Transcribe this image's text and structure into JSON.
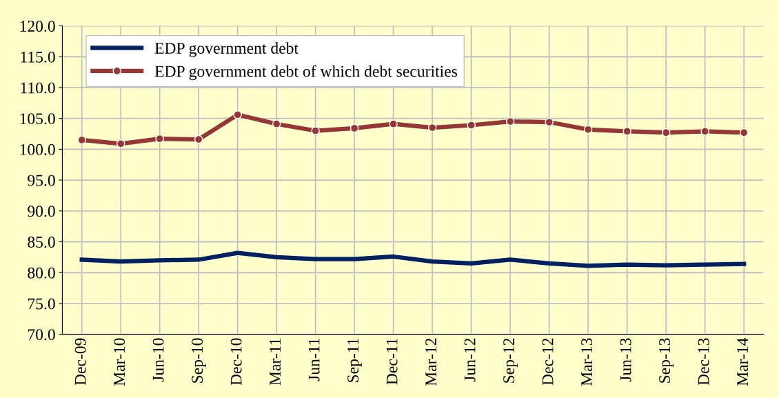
{
  "chart_data": {
    "type": "line",
    "categories": [
      "Dec-09",
      "Mar-10",
      "Jun-10",
      "Sep-10",
      "Dec-10",
      "Mar-11",
      "Jun-11",
      "Sep-11",
      "Dec-11",
      "Mar-12",
      "Jun-12",
      "Sep-12",
      "Dec-12",
      "Mar-13",
      "Jun-13",
      "Sep-13",
      "Dec-13",
      "Mar-14"
    ],
    "series": [
      {
        "name": "EDP government debt",
        "color": "#002060",
        "marker": "none",
        "values": [
          82.1,
          81.8,
          82.0,
          82.1,
          83.2,
          82.5,
          82.2,
          82.2,
          82.6,
          81.8,
          81.5,
          82.1,
          81.5,
          81.1,
          81.3,
          81.2,
          81.3,
          81.4
        ]
      },
      {
        "name": "EDP government debt of which debt securities",
        "color": "#953735",
        "marker": "circle",
        "values": [
          101.5,
          100.9,
          101.7,
          101.6,
          105.6,
          104.1,
          103.0,
          103.4,
          104.1,
          103.5,
          103.9,
          104.5,
          104.4,
          103.2,
          102.9,
          102.7,
          102.9,
          102.7
        ]
      }
    ],
    "ylim": [
      70,
      120
    ],
    "yticks": [
      {
        "value": 70,
        "label": "70.0"
      },
      {
        "value": 75,
        "label": "75.0"
      },
      {
        "value": 80,
        "label": "80.0"
      },
      {
        "value": 85,
        "label": "85.0"
      },
      {
        "value": 90,
        "label": "90.0"
      },
      {
        "value": 95,
        "label": "95.0"
      },
      {
        "value": 100,
        "label": "100.0"
      },
      {
        "value": 105,
        "label": "105.0"
      },
      {
        "value": 110,
        "label": "110.0"
      },
      {
        "value": 115,
        "label": "115.0"
      },
      {
        "value": 120,
        "label": "120.0"
      }
    ],
    "grid": true,
    "legend": "top left",
    "line_style": "solid"
  }
}
